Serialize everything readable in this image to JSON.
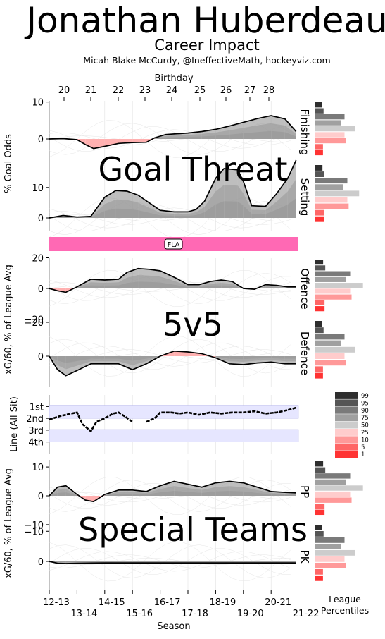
{
  "header": {
    "title": "Jonathan Huberdeau",
    "subtitle": "Career Impact",
    "credit": "Micah Blake McCurdy, @IneffectiveMath, hockeyviz.com"
  },
  "top_axis": {
    "label": "Birthday",
    "ticks": [
      "20",
      "21",
      "22",
      "23",
      "24",
      "25",
      "26",
      "27",
      "28"
    ]
  },
  "bottom_axis": {
    "label": "Season",
    "ticks_upper": [
      "12-13",
      "14-15",
      "16-17",
      "18-19",
      "20-21"
    ],
    "ticks_lower": [
      "13-14",
      "15-16",
      "17-18",
      "19-20",
      "21-22"
    ]
  },
  "section_labels": {
    "goal_threat": "Goal Threat",
    "five_v_five": "5v5",
    "special_teams": "Special Teams"
  },
  "team_bar": {
    "label": "FLA",
    "color": "#ff69b4"
  },
  "legend": {
    "title": "League\nPercentiles",
    "levels": [
      "99",
      "95",
      "90",
      "75",
      "50",
      "25",
      "10",
      "5",
      "1"
    ],
    "colors": [
      "#2e2e2e",
      "#555555",
      "#7a7a7a",
      "#a0a0a0",
      "#cccccc",
      "#ffcccc",
      "#ff9999",
      "#ff6666",
      "#ff3333"
    ]
  },
  "chart_data": [
    {
      "type": "area",
      "panel": "Finishing",
      "ylabel": "% Goal Odds",
      "ylim": [
        -5,
        12
      ],
      "yticks": [
        "0",
        "10"
      ],
      "x_seasons": [
        0,
        0.5,
        1,
        1.3,
        1.6,
        2,
        2.5,
        3,
        3.5,
        3.8,
        4.2,
        5,
        5.5,
        6,
        6.5,
        7,
        7.5,
        8,
        8.5,
        8.9
      ],
      "values": [
        0,
        0.1,
        -0.2,
        -1.5,
        -2.6,
        -2.0,
        -1.2,
        -1.0,
        -0.9,
        0.3,
        1.2,
        1.6,
        2.0,
        2.6,
        3.5,
        4.5,
        5.5,
        6.3,
        5.4,
        2.0
      ]
    },
    {
      "type": "area",
      "panel": "Setting",
      "ylim": [
        -3,
        19
      ],
      "yticks": [
        "0",
        "10"
      ],
      "x_seasons": [
        0,
        0.5,
        1,
        1.5,
        2,
        2.4,
        2.8,
        3.2,
        3.6,
        4,
        4.5,
        5,
        5.3,
        5.6,
        6,
        6.3,
        6.8,
        7,
        7.3,
        7.8,
        8.2,
        8.6,
        8.9
      ],
      "values": [
        0,
        0.8,
        0.3,
        0.5,
        6.8,
        9.0,
        8.8,
        7.5,
        5.0,
        2.5,
        2.0,
        2.0,
        2.8,
        5.5,
        13.0,
        16.2,
        15.8,
        12.0,
        4.0,
        3.8,
        8.0,
        13.0,
        19.0
      ]
    },
    {
      "type": "area",
      "panel": "Offence",
      "ylabel": "xG/60, % of League Avg",
      "ylim": [
        -20,
        20
      ],
      "yticks": [
        "20",
        "0",
        "−20"
      ],
      "x_seasons": [
        0,
        0.3,
        0.6,
        1,
        1.5,
        2,
        2.5,
        2.8,
        3.2,
        3.6,
        4,
        4.6,
        5,
        5.4,
        5.8,
        6.2,
        6.6,
        7,
        7.4,
        7.8,
        8.2,
        8.6,
        8.9
      ],
      "values": [
        0,
        -1.5,
        -2.5,
        1.0,
        6.0,
        5.5,
        6.0,
        10.5,
        13.0,
        12.5,
        11.5,
        6.5,
        2.5,
        2.5,
        4.5,
        5.5,
        4.5,
        0.0,
        -0.5,
        2.5,
        2.0,
        1.0,
        1.0
      ]
    },
    {
      "type": "area",
      "panel": "Defence",
      "ylim": [
        -20,
        20
      ],
      "yticks": [
        "−20",
        "0",
        "20"
      ],
      "y_inverted": true,
      "x_seasons": [
        0,
        0.3,
        0.6,
        1,
        1.5,
        2,
        2.5,
        3,
        3.5,
        4,
        4.5,
        5,
        5.5,
        6,
        6.5,
        7,
        7.5,
        8,
        8.5,
        8.9
      ],
      "values": [
        0,
        8.0,
        11.5,
        8.5,
        4.5,
        4.5,
        4.5,
        8.0,
        4.5,
        0.0,
        -3.0,
        -2.5,
        -1.5,
        1.0,
        4.5,
        5.0,
        4.0,
        3.5,
        4.5,
        4.5
      ]
    },
    {
      "type": "line",
      "panel": "Line (All Sit)",
      "ylabel": "Line (All Sit)",
      "yticks": [
        "1st",
        "2nd",
        "3rd",
        "4th"
      ],
      "ylim": [
        0.5,
        4.5
      ],
      "x_seasons": [
        0,
        0.4,
        0.8,
        1.0,
        1.2,
        1.5,
        1.7,
        2.0,
        2.3,
        2.5,
        2.7,
        3.0,
        3.3,
        3.5,
        3.8,
        4.0,
        4.4,
        4.7,
        5.0,
        5.4,
        5.8,
        6.2,
        6.6,
        7.0,
        7.4,
        7.8,
        8.2,
        8.6,
        8.9
      ],
      "values": [
        2.1,
        1.8,
        1.6,
        1.5,
        2.5,
        3.1,
        2.3,
        2.0,
        1.6,
        1.5,
        1.8,
        2.3,
        null,
        2.3,
        2.0,
        1.5,
        1.5,
        1.6,
        1.5,
        1.7,
        1.5,
        1.6,
        1.5,
        1.5,
        1.4,
        1.6,
        1.5,
        1.3,
        1.1
      ]
    },
    {
      "type": "area",
      "panel": "PP",
      "ylabel": "xG/60, % of League Avg",
      "ylim": [
        -10,
        12
      ],
      "yticks": [
        "10",
        "0",
        "−10"
      ],
      "x_seasons": [
        0,
        0.3,
        0.6,
        1,
        1.3,
        1.6,
        2,
        2.5,
        3,
        3.5,
        4,
        4.5,
        5,
        5.5,
        6,
        6.5,
        7,
        7.5,
        8,
        8.5,
        8.9
      ],
      "values": [
        0,
        3.0,
        3.5,
        0.5,
        -1.5,
        -2.0,
        0.5,
        2.0,
        2.0,
        1.5,
        3.5,
        5.0,
        4.0,
        3.0,
        4.5,
        5.0,
        4.5,
        3.0,
        1.5,
        1.2,
        1.0
      ]
    },
    {
      "type": "area",
      "panel": "PK",
      "ylim": [
        -12,
        10
      ],
      "yticks": [
        "−10",
        "0",
        "10"
      ],
      "y_inverted": true,
      "x_seasons": [
        0,
        0.3,
        0.6,
        1,
        2,
        3,
        4,
        5,
        6,
        7,
        8,
        8.9
      ],
      "values": [
        0,
        0.6,
        0.7,
        0.6,
        0.5,
        0.5,
        0.5,
        0.5,
        0.5,
        0.5,
        0.5,
        0.5
      ]
    }
  ]
}
